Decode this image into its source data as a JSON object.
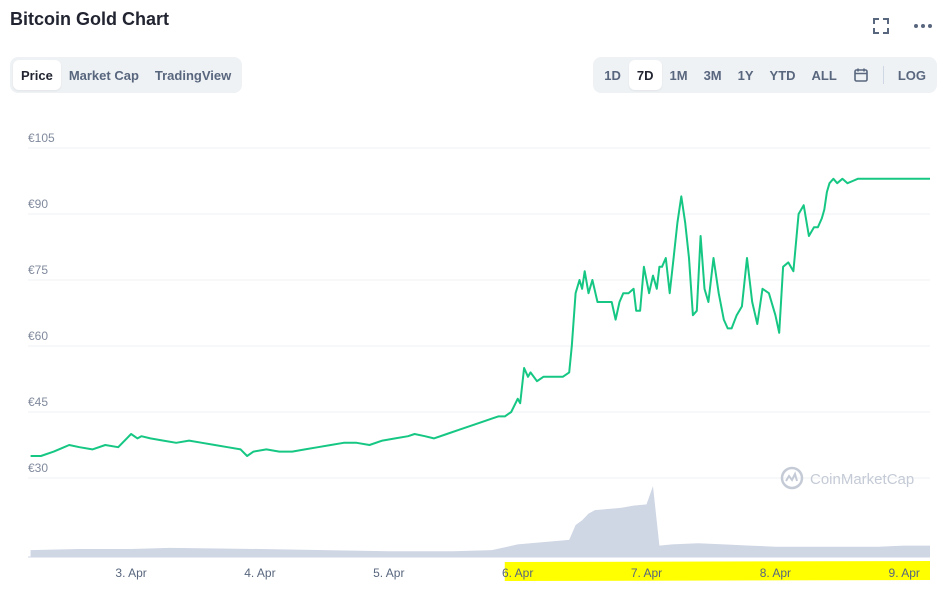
{
  "header": {
    "title": "Bitcoin Gold Chart"
  },
  "icons": {
    "fullscreen": "fullscreen-icon",
    "more": "more-options-icon",
    "calendar": "calendar-icon",
    "logo": "coinmarketcap-logo-icon"
  },
  "tabs": [
    {
      "label": "Price",
      "active": true
    },
    {
      "label": "Market Cap",
      "active": false
    },
    {
      "label": "TradingView",
      "active": false
    }
  ],
  "ranges": [
    {
      "label": "1D",
      "active": false
    },
    {
      "label": "7D",
      "active": true
    },
    {
      "label": "1M",
      "active": false
    },
    {
      "label": "3M",
      "active": false
    },
    {
      "label": "1Y",
      "active": false
    },
    {
      "label": "YTD",
      "active": false
    },
    {
      "label": "ALL",
      "active": false
    }
  ],
  "log_label": "LOG",
  "watermark": "CoinMarketCap",
  "colors": {
    "line": "#16c784",
    "volume": "#cfd6e4",
    "grid": "#eff2f5",
    "highlight": "#ffff00"
  },
  "chart_data": {
    "type": "line",
    "ylabel_ticks": [
      "€30",
      "€45",
      "€60",
      "€75",
      "€90",
      "€105"
    ],
    "ylim": [
      30,
      105
    ],
    "xlabel_ticks": [
      "3. Apr",
      "4. Apr",
      "5. Apr",
      "6. Apr",
      "7. Apr",
      "8. Apr",
      "9. Apr"
    ],
    "xlim": [
      2.2,
      9.2
    ],
    "grid": true,
    "series": [
      {
        "kind": "price",
        "x": [
          2.22,
          2.3,
          2.4,
          2.48,
          2.52,
          2.6,
          2.7,
          2.8,
          2.9,
          3.0,
          3.05,
          3.08,
          3.15,
          3.25,
          3.35,
          3.45,
          3.55,
          3.65,
          3.75,
          3.85,
          3.9,
          3.95,
          4.05,
          4.15,
          4.25,
          4.35,
          4.45,
          4.55,
          4.65,
          4.75,
          4.85,
          4.95,
          5.05,
          5.15,
          5.2,
          5.28,
          5.35,
          5.45,
          5.55,
          5.65,
          5.75,
          5.8,
          5.85,
          5.9,
          5.95,
          6.0,
          6.02,
          6.05,
          6.08,
          6.1,
          6.15,
          6.2,
          6.25,
          6.3,
          6.35,
          6.4,
          6.42,
          6.45,
          6.48,
          6.5,
          6.52,
          6.55,
          6.58,
          6.62,
          6.68,
          6.73,
          6.76,
          6.79,
          6.82,
          6.86,
          6.9,
          6.92,
          6.95,
          6.98,
          7.02,
          7.05,
          7.08,
          7.1,
          7.12,
          7.15,
          7.18,
          7.21,
          7.24,
          7.27,
          7.3,
          7.33,
          7.36,
          7.39,
          7.42,
          7.45,
          7.48,
          7.52,
          7.56,
          7.6,
          7.63,
          7.66,
          7.7,
          7.74,
          7.78,
          7.82,
          7.86,
          7.9,
          7.95,
          8.0,
          8.03,
          8.06,
          8.1,
          8.14,
          8.18,
          8.22,
          8.26,
          8.3,
          8.33,
          8.36,
          8.38,
          8.4,
          8.42,
          8.45,
          8.48,
          8.52,
          8.56,
          8.6,
          8.64,
          8.68,
          8.72,
          8.76,
          8.8,
          8.84,
          8.88,
          8.92,
          8.96,
          9.0,
          9.05,
          9.1,
          9.15,
          9.2
        ],
        "values": [
          35,
          35,
          36,
          37,
          37.5,
          37,
          36.5,
          37.5,
          37,
          40,
          39,
          39.5,
          39,
          38.5,
          38,
          38.5,
          38,
          37.5,
          37,
          36.5,
          35,
          36,
          36.5,
          36,
          36,
          36.5,
          37,
          37.5,
          38,
          38,
          37.5,
          38.5,
          39,
          39.5,
          40,
          39.5,
          39,
          40,
          41,
          42,
          43,
          43.5,
          44,
          44,
          45,
          48,
          47,
          55,
          53,
          54,
          52,
          53,
          53,
          53,
          53,
          54,
          60,
          72,
          75,
          73,
          77,
          72,
          75,
          70,
          70,
          70,
          66,
          70,
          72,
          72,
          73,
          68,
          68,
          78,
          72,
          76,
          73,
          78,
          78,
          80,
          72,
          80,
          88,
          94,
          88,
          80,
          67,
          68,
          85,
          73,
          70,
          80,
          72,
          66,
          64,
          64,
          67,
          69,
          80,
          70,
          65,
          73,
          72,
          67,
          63,
          78,
          79,
          77,
          90,
          92,
          85,
          87,
          87,
          89,
          91,
          95,
          97,
          98,
          97,
          98,
          97,
          97.5,
          98,
          98,
          98,
          98,
          98,
          98,
          98,
          98,
          98,
          98,
          98,
          98,
          98,
          98
        ]
      },
      {
        "kind": "volume",
        "x": [
          2.22,
          2.6,
          3.0,
          3.3,
          3.6,
          4.0,
          4.5,
          5.0,
          5.5,
          5.8,
          6.0,
          6.2,
          6.4,
          6.45,
          6.5,
          6.55,
          6.6,
          6.7,
          6.8,
          6.9,
          7.0,
          7.05,
          7.1,
          7.2,
          7.4,
          7.6,
          7.8,
          8.0,
          8.2,
          8.4,
          8.6,
          8.8,
          9.0,
          9.2
        ],
        "values": [
          0.6,
          0.7,
          0.7,
          0.8,
          0.75,
          0.7,
          0.6,
          0.5,
          0.5,
          0.6,
          1.1,
          1.3,
          1.5,
          2.8,
          3.2,
          3.8,
          4.1,
          4.2,
          4.3,
          4.5,
          4.6,
          6.2,
          1.0,
          1.1,
          1.2,
          1.1,
          1.0,
          0.9,
          0.9,
          0.9,
          0.9,
          0.9,
          1.0,
          1.0
        ]
      }
    ],
    "highlight_range": [
      "6. Apr",
      "9. Apr"
    ]
  }
}
